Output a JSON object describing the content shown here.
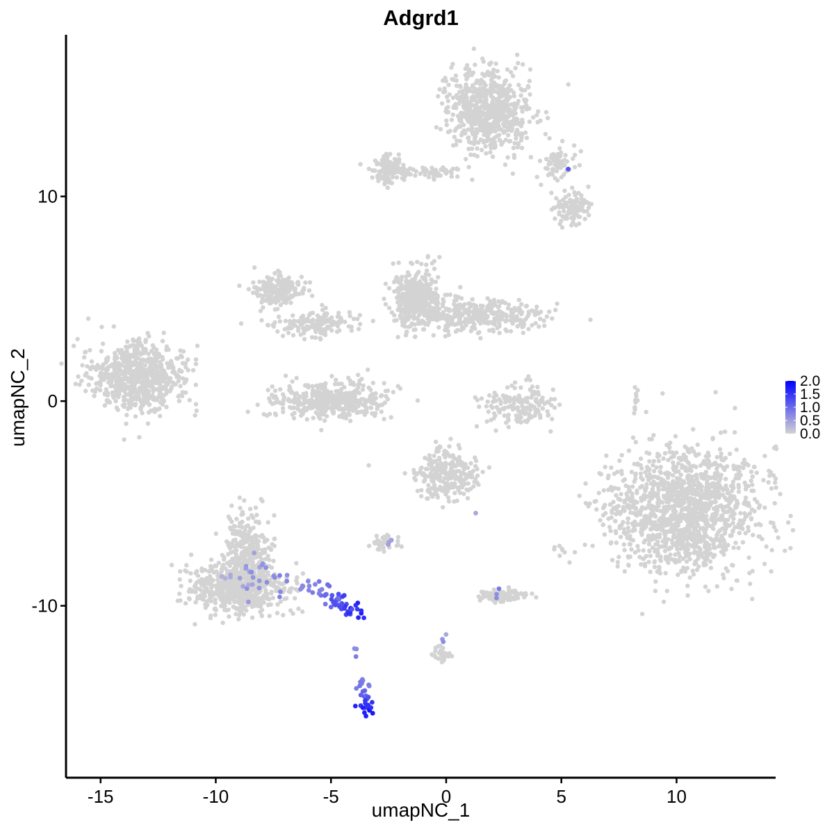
{
  "chart_data": {
    "type": "scatter",
    "title": "Adgrd1",
    "xlabel": "umapNC_1",
    "ylabel": "umapNC_2",
    "xlim": [
      -16.5,
      14.3
    ],
    "ylim": [
      -18.4,
      17.9
    ],
    "x_ticks": [
      -15,
      -10,
      -5,
      0,
      5,
      10
    ],
    "x_tick_labels": [
      "-15",
      "-10",
      "-5",
      "0",
      "5",
      "10"
    ],
    "y_ticks": [
      -10,
      0,
      10
    ],
    "y_tick_labels": [
      "-10",
      "0",
      "10"
    ],
    "background_color": "#d3d3d3",
    "color_low": "#d3d3d3",
    "color_high": "#0000ff",
    "grid": false,
    "legend": {
      "placement": "right",
      "range": [
        0,
        2.0
      ],
      "ticks": [
        0,
        0.5,
        1.0,
        1.5,
        2.0
      ],
      "tick_labels": [
        "0.0",
        "0.5",
        "1.0",
        "1.5",
        "2.0"
      ]
    },
    "clusters": [
      {
        "center": [
          -13.4,
          1.2
        ],
        "spread": [
          1.0,
          0.8
        ],
        "n": 700
      },
      {
        "center": [
          -7.4,
          5.4
        ],
        "spread": [
          0.6,
          0.4
        ],
        "n": 180
      },
      {
        "center": [
          -5.6,
          3.8
        ],
        "spread": [
          0.9,
          0.3
        ],
        "n": 150
      },
      {
        "center": [
          -5.0,
          0.0
        ],
        "spread": [
          1.2,
          0.45
        ],
        "n": 420
      },
      {
        "center": [
          -1.3,
          5.0
        ],
        "spread": [
          0.5,
          0.7
        ],
        "n": 400
      },
      {
        "center": [
          1.3,
          4.2
        ],
        "spread": [
          1.5,
          0.4
        ],
        "n": 350
      },
      {
        "center": [
          1.9,
          14.2
        ],
        "spread": [
          0.9,
          1.0
        ],
        "n": 650
      },
      {
        "center": [
          -2.5,
          11.3
        ],
        "spread": [
          0.3,
          0.3
        ],
        "n": 140
      },
      {
        "center": [
          -1.0,
          11.2
        ],
        "spread": [
          1.0,
          0.15
        ],
        "n": 70
      },
      {
        "center": [
          4.8,
          11.6
        ],
        "spread": [
          0.4,
          0.4
        ],
        "n": 70
      },
      {
        "center": [
          5.4,
          9.5
        ],
        "spread": [
          0.4,
          0.4
        ],
        "n": 110
      },
      {
        "center": [
          3.2,
          -0.2
        ],
        "spread": [
          0.8,
          0.5
        ],
        "n": 160
      },
      {
        "center": [
          0.0,
          -3.6
        ],
        "spread": [
          0.7,
          0.6
        ],
        "n": 260
      },
      {
        "center": [
          10.3,
          -5.3
        ],
        "spread": [
          1.6,
          1.5
        ],
        "n": 1400
      },
      {
        "center": [
          -8.6,
          -7.3
        ],
        "spread": [
          0.5,
          0.9
        ],
        "n": 300
      },
      {
        "center": [
          -9.0,
          -9.2
        ],
        "spread": [
          1.0,
          0.6
        ],
        "n": 600
      },
      {
        "center": [
          -2.6,
          -6.9
        ],
        "spread": [
          0.3,
          0.2
        ],
        "n": 35
      },
      {
        "center": [
          2.5,
          -9.5
        ],
        "spread": [
          0.5,
          0.15
        ],
        "n": 90
      },
      {
        "center": [
          -0.2,
          -12.4
        ],
        "spread": [
          0.2,
          0.25
        ],
        "n": 30
      },
      {
        "center": [
          8.2,
          0.2
        ],
        "spread": [
          0.05,
          0.4
        ],
        "n": 12
      },
      {
        "center": [
          5.0,
          -7.3
        ],
        "spread": [
          0.2,
          0.1
        ],
        "n": 8
      }
    ],
    "expressing_groups": [
      {
        "path": [
          [
            -6.5,
            -8.7
          ],
          [
            -4.8,
            -9.7
          ],
          [
            -3.8,
            -10.4
          ]
        ],
        "jitter": 0.25,
        "n": 60,
        "expr": [
          0.5,
          1.9
        ]
      },
      {
        "path": [
          [
            -3.6,
            -13.5
          ],
          [
            -3.5,
            -14.5
          ],
          [
            -3.5,
            -15.3
          ]
        ],
        "jitter": 0.15,
        "n": 32,
        "expr": [
          0.7,
          2.0
        ]
      },
      {
        "path": [
          [
            -9.8,
            -8.6
          ],
          [
            -8.0,
            -8.6
          ],
          [
            -7.0,
            -9.0
          ]
        ],
        "jitter": 0.5,
        "n": 30,
        "expr": [
          0.3,
          1.0
        ]
      },
      {
        "path": [
          [
            -3.9,
            -12.0
          ],
          [
            -3.9,
            -12.5
          ]
        ],
        "jitter": 0.05,
        "n": 3,
        "expr": [
          0.6,
          0.9
        ]
      },
      {
        "path": [
          [
            -2.7,
            -6.8
          ],
          [
            -2.4,
            -7.0
          ]
        ],
        "jitter": 0.1,
        "n": 3,
        "expr": [
          0.4,
          0.6
        ]
      },
      {
        "path": [
          [
            2.0,
            -9.5
          ],
          [
            2.3,
            -9.3
          ]
        ],
        "jitter": 0.1,
        "n": 3,
        "expr": [
          0.6,
          0.9
        ]
      },
      {
        "path": [
          [
            -0.1,
            -11.4
          ],
          [
            -0.1,
            -11.8
          ]
        ],
        "jitter": 0.05,
        "n": 3,
        "expr": [
          0.4,
          0.7
        ]
      },
      {
        "path": [
          [
            5.3,
            11.3
          ],
          [
            5.3,
            11.3
          ]
        ],
        "jitter": 0.02,
        "n": 1,
        "expr": [
          1.2,
          1.2
        ]
      },
      {
        "path": [
          [
            1.3,
            -5.5
          ],
          [
            1.3,
            -5.5
          ]
        ],
        "jitter": 0.02,
        "n": 1,
        "expr": [
          0.4,
          0.4
        ]
      }
    ]
  }
}
